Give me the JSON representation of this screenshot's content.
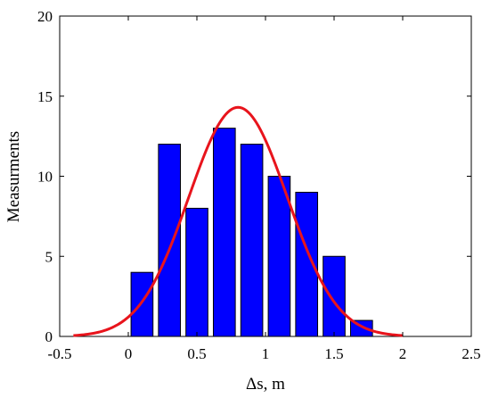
{
  "chart_data": {
    "type": "bar",
    "xlabel": "Δs, m",
    "ylabel": "Measurments",
    "xlim": [
      -0.5,
      2.5
    ],
    "ylim": [
      0,
      20
    ],
    "xticks": [
      "-0.5",
      "0",
      "0.5",
      "1",
      "1.5",
      "2",
      "2.5"
    ],
    "yticks": [
      "0",
      "5",
      "10",
      "15",
      "20"
    ],
    "grid": false,
    "bar_color": "#0000FF",
    "bar_edge_color": "#000000",
    "bars": {
      "centers": [
        0.1,
        0.3,
        0.5,
        0.7,
        0.9,
        1.1,
        1.3,
        1.5,
        1.7
      ],
      "width": 0.16,
      "values": [
        4,
        12,
        8,
        13,
        12,
        10,
        9,
        5,
        1
      ]
    },
    "fit_curve": {
      "type": "normal",
      "color": "#E8141C",
      "mean": 0.8,
      "std": 0.36,
      "peak": 14.3,
      "x_range": [
        -0.4,
        2.0
      ]
    }
  }
}
